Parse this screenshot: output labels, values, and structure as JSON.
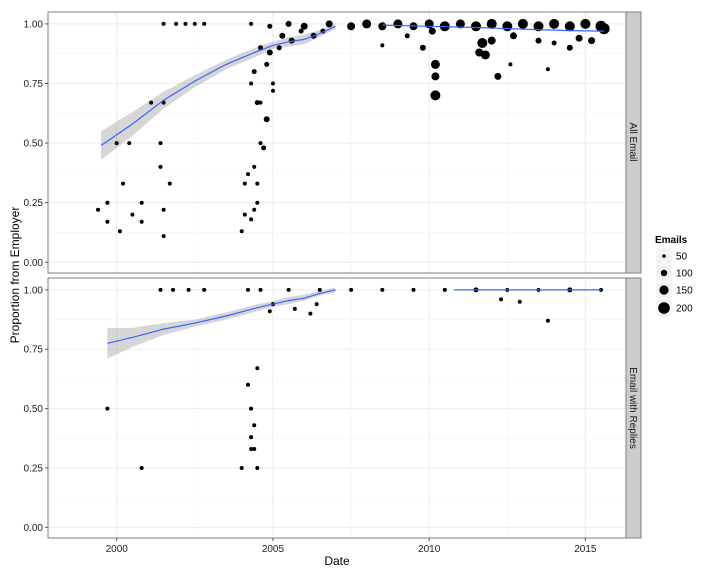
{
  "chart_data": {
    "type": "scatter",
    "xlabel": "Date",
    "ylabel": "Proportion from Employer",
    "xlim": [
      1997.8,
      2016.3
    ],
    "ylim": [
      -0.045,
      1.05
    ],
    "x_ticks": [
      2000,
      2005,
      2010,
      2015
    ],
    "x_tick_labels": [
      "2000",
      "2005",
      "2010",
      "2015"
    ],
    "y_ticks": [
      0,
      0.25,
      0.5,
      0.75,
      1.0
    ],
    "y_tick_labels": [
      "0.00",
      "0.25",
      "0.50",
      "0.75",
      "1.00"
    ],
    "colors": {
      "panel_border": "#7f7f7f",
      "grid": "#ebebeb",
      "strip_bg": "#cccccc",
      "point": "#000000",
      "smooth_line": "#3366ff",
      "ribbon": "#999999"
    },
    "legend": {
      "title": "Emails",
      "position": "right",
      "items": [
        {
          "label": "50",
          "value": 50
        },
        {
          "label": "100",
          "value": 100
        },
        {
          "label": "150",
          "value": 150
        },
        {
          "label": "200",
          "value": 200
        }
      ]
    },
    "panels": [
      {
        "strip": "All Email",
        "points": [
          [
            1999.4,
            0.22,
            4
          ],
          [
            1999.7,
            0.25,
            4
          ],
          [
            1999.7,
            0.17,
            4
          ],
          [
            2000.0,
            0.5,
            4
          ],
          [
            2000.2,
            0.33,
            4
          ],
          [
            2000.1,
            0.13,
            4
          ],
          [
            2000.4,
            0.5,
            4
          ],
          [
            2000.5,
            0.2,
            4
          ],
          [
            2000.8,
            0.25,
            4
          ],
          [
            2000.8,
            0.17,
            4
          ],
          [
            2001.1,
            0.67,
            4
          ],
          [
            2001.4,
            0.4,
            4
          ],
          [
            2001.4,
            0.5,
            4
          ],
          [
            2001.5,
            0.22,
            4
          ],
          [
            2001.5,
            0.67,
            4
          ],
          [
            2001.5,
            0.11,
            4
          ],
          [
            2001.7,
            0.33,
            4
          ],
          [
            2001.5,
            1.0,
            4
          ],
          [
            2001.9,
            1.0,
            4
          ],
          [
            2002.2,
            1.0,
            4
          ],
          [
            2002.5,
            1.0,
            4
          ],
          [
            2002.8,
            1.0,
            4
          ],
          [
            2004.0,
            0.13,
            4
          ],
          [
            2004.1,
            0.33,
            4
          ],
          [
            2004.1,
            0.2,
            4
          ],
          [
            2004.2,
            0.37,
            4
          ],
          [
            2004.3,
            0.18,
            4
          ],
          [
            2004.4,
            0.4,
            4
          ],
          [
            2004.4,
            0.22,
            4
          ],
          [
            2004.5,
            0.33,
            4
          ],
          [
            2004.5,
            0.25,
            4
          ],
          [
            2004.6,
            0.5,
            4
          ],
          [
            2004.6,
            0.67,
            4
          ],
          [
            2004.7,
            0.48,
            5
          ],
          [
            2004.5,
            0.67,
            5
          ],
          [
            2004.8,
            0.6,
            6
          ],
          [
            2004.9,
            0.88,
            6
          ],
          [
            2004.4,
            0.8,
            5
          ],
          [
            2004.3,
            0.75,
            4
          ],
          [
            2004.6,
            0.9,
            5
          ],
          [
            2004.8,
            0.83,
            5
          ],
          [
            2005.0,
            0.75,
            4
          ],
          [
            2005.0,
            0.72,
            4
          ],
          [
            2004.3,
            1.0,
            4
          ],
          [
            2005.2,
            0.9,
            5
          ],
          [
            2005.3,
            0.95,
            6
          ],
          [
            2005.6,
            0.93,
            6
          ],
          [
            2005.9,
            0.97,
            5
          ],
          [
            2006.3,
            0.95,
            6
          ],
          [
            2006.6,
            0.97,
            5
          ],
          [
            2004.9,
            0.99,
            5
          ],
          [
            2005.5,
            1.0,
            6
          ],
          [
            2006.0,
            0.99,
            7
          ],
          [
            2006.8,
            1.0,
            7
          ],
          [
            2007.5,
            0.99,
            8
          ],
          [
            2008.0,
            1.0,
            9
          ],
          [
            2008.5,
            0.99,
            8
          ],
          [
            2009.0,
            1.0,
            9
          ],
          [
            2009.5,
            0.99,
            8
          ],
          [
            2010.0,
            1.0,
            9
          ],
          [
            2010.5,
            0.99,
            10
          ],
          [
            2011.0,
            1.0,
            9
          ],
          [
            2011.5,
            0.99,
            10
          ],
          [
            2012.0,
            1.0,
            10
          ],
          [
            2012.5,
            0.99,
            10
          ],
          [
            2013.0,
            1.0,
            10
          ],
          [
            2013.5,
            0.99,
            10
          ],
          [
            2014.0,
            1.0,
            10
          ],
          [
            2014.5,
            0.99,
            10
          ],
          [
            2015.0,
            1.0,
            10
          ],
          [
            2015.5,
            0.99,
            11
          ],
          [
            2008.5,
            0.91,
            4
          ],
          [
            2009.3,
            0.95,
            5
          ],
          [
            2009.8,
            0.9,
            6
          ],
          [
            2010.1,
            0.97,
            7
          ],
          [
            2010.2,
            0.83,
            9
          ],
          [
            2010.2,
            0.78,
            8
          ],
          [
            2010.2,
            0.7,
            10
          ],
          [
            2011.6,
            0.88,
            8
          ],
          [
            2011.7,
            0.92,
            10
          ],
          [
            2011.8,
            0.87,
            9
          ],
          [
            2012.0,
            0.93,
            8
          ],
          [
            2012.2,
            0.78,
            7
          ],
          [
            2012.6,
            0.83,
            4
          ],
          [
            2012.7,
            0.95,
            7
          ],
          [
            2013.8,
            0.81,
            4
          ],
          [
            2013.5,
            0.93,
            6
          ],
          [
            2014.0,
            0.92,
            5
          ],
          [
            2014.5,
            0.9,
            6
          ],
          [
            2014.8,
            0.94,
            7
          ],
          [
            2015.2,
            0.93,
            7
          ],
          [
            2015.6,
            0.98,
            11
          ]
        ],
        "smooth": {
          "x": [
            1999.5,
            2000.5,
            2001.5,
            2002.5,
            2003.5,
            2004.5,
            2005.0,
            2005.5,
            2006.0,
            2006.5,
            2007.0
          ],
          "y": [
            0.49,
            0.58,
            0.68,
            0.76,
            0.83,
            0.885,
            0.91,
            0.925,
            0.935,
            0.96,
            0.99
          ],
          "lo": [
            0.43,
            0.53,
            0.645,
            0.735,
            0.81,
            0.865,
            0.895,
            0.905,
            0.915,
            0.945,
            0.98
          ],
          "hi": [
            0.55,
            0.63,
            0.715,
            0.785,
            0.85,
            0.905,
            0.925,
            0.945,
            0.955,
            0.975,
            1.0
          ]
        },
        "smooth2": {
          "x": [
            2008.5,
            2010.0,
            2011.5,
            2013.0,
            2014.5,
            2015.6
          ],
          "y": [
            0.995,
            0.99,
            0.985,
            0.978,
            0.972,
            0.97
          ]
        }
      },
      {
        "strip": "Email with Replies",
        "points": [
          [
            1999.7,
            0.5,
            4
          ],
          [
            2000.8,
            0.25,
            4
          ],
          [
            2001.4,
            1.0,
            4
          ],
          [
            2001.8,
            1.0,
            4
          ],
          [
            2002.3,
            1.0,
            4
          ],
          [
            2002.8,
            1.0,
            4
          ],
          [
            2004.0,
            0.25,
            4
          ],
          [
            2004.2,
            0.6,
            4
          ],
          [
            2004.2,
            1.0,
            4
          ],
          [
            2004.3,
            0.5,
            4
          ],
          [
            2004.3,
            0.38,
            4
          ],
          [
            2004.4,
            0.43,
            4
          ],
          [
            2004.3,
            0.33,
            4
          ],
          [
            2004.4,
            0.33,
            4
          ],
          [
            2004.5,
            0.67,
            4
          ],
          [
            2004.5,
            0.25,
            4
          ],
          [
            2004.6,
            1.0,
            4
          ],
          [
            2004.9,
            0.91,
            4
          ],
          [
            2005.0,
            0.94,
            4
          ],
          [
            2005.7,
            0.92,
            4
          ],
          [
            2006.2,
            0.9,
            4
          ],
          [
            2006.4,
            0.94,
            4
          ],
          [
            2012.3,
            0.96,
            4
          ],
          [
            2012.9,
            0.95,
            4
          ],
          [
            2013.8,
            0.87,
            4
          ],
          [
            2005.5,
            1.0,
            4
          ],
          [
            2006.5,
            1.0,
            4
          ],
          [
            2007.5,
            1.0,
            4
          ],
          [
            2008.5,
            1.0,
            4
          ],
          [
            2009.5,
            1.0,
            4
          ],
          [
            2010.5,
            1.0,
            4
          ],
          [
            2011.5,
            1.0,
            5
          ],
          [
            2012.5,
            1.0,
            4
          ],
          [
            2013.5,
            1.0,
            4
          ],
          [
            2014.5,
            1.0,
            5
          ],
          [
            2015.5,
            1.0,
            4
          ]
        ],
        "smooth": {
          "x": [
            1999.7,
            2000.5,
            2001.5,
            2002.5,
            2003.5,
            2004.5,
            2005.0,
            2005.5,
            2006.0,
            2006.5,
            2007.0
          ],
          "y": [
            0.775,
            0.8,
            0.835,
            0.86,
            0.89,
            0.925,
            0.94,
            0.955,
            0.965,
            0.985,
            1.0
          ],
          "lo": [
            0.71,
            0.76,
            0.81,
            0.845,
            0.875,
            0.91,
            0.928,
            0.94,
            0.955,
            0.975,
            0.99
          ],
          "hi": [
            0.84,
            0.84,
            0.86,
            0.875,
            0.905,
            0.94,
            0.952,
            0.97,
            0.98,
            0.995,
            1.01
          ]
        },
        "smooth2": {
          "x": [
            2010.8,
            2012.5,
            2014.0,
            2015.5
          ],
          "y": [
            1.0,
            1.0,
            1.0,
            1.0
          ]
        }
      }
    ]
  }
}
